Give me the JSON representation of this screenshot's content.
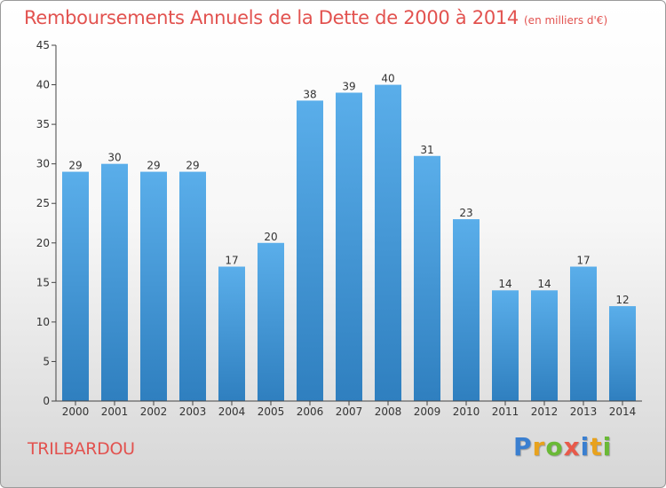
{
  "header": {
    "title": "Remboursements Annuels de la Dette de 2000 à 2014",
    "unit": "(en milliers d'€)"
  },
  "footer": {
    "commune": "TRILBARDOU",
    "brand": "Proxiti"
  },
  "colors": {
    "title": "#e2524f",
    "bar_top": "#5aaeea",
    "bar_bottom": "#2f7fbf"
  },
  "chart_data": {
    "type": "bar",
    "title": "Remboursements Annuels de la Dette de 2000 à 2014",
    "subtitle": "(en milliers d'€)",
    "xlabel": "",
    "ylabel": "",
    "ylim": [
      0,
      45
    ],
    "yticks": [
      0,
      5,
      10,
      15,
      20,
      25,
      30,
      35,
      40,
      45
    ],
    "grid": false,
    "categories": [
      "2000",
      "2001",
      "2002",
      "2003",
      "2004",
      "2005",
      "2006",
      "2007",
      "2008",
      "2009",
      "2010",
      "2011",
      "2012",
      "2013",
      "2014"
    ],
    "values": [
      29,
      30,
      29,
      29,
      17,
      20,
      38,
      39,
      40,
      31,
      23,
      14,
      14,
      17,
      12
    ]
  }
}
